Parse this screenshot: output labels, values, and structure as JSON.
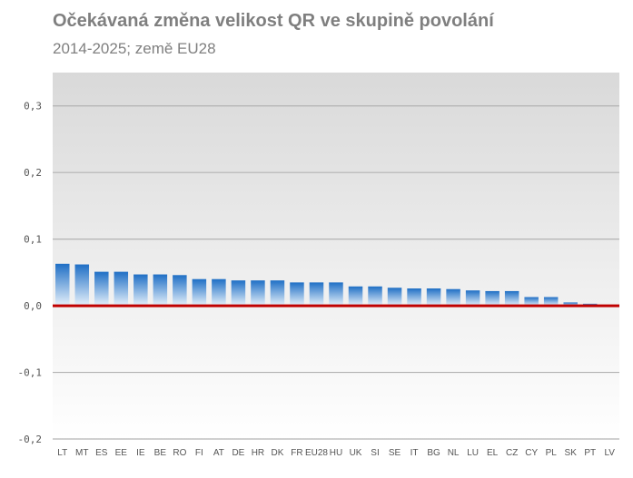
{
  "title": "Očekávaná změna velikost QR ve skupině povolání",
  "subtitle": "2014-2025; země EU28",
  "chart_data": {
    "type": "bar",
    "title": "Očekávaná změna velikost QR ve skupině povolání",
    "subtitle": "2014-2025; země EU28",
    "xlabel": "",
    "ylabel": "",
    "ylim": [
      -0.2,
      0.35
    ],
    "yticks": [
      0.3,
      0.2,
      0.1,
      0.0,
      -0.1,
      -0.2
    ],
    "ytick_labels": [
      "0,3",
      "0,2",
      "0,1",
      "0,0",
      "-0,1",
      "-0,2"
    ],
    "grid": true,
    "categories": [
      "LT",
      "MT",
      "ES",
      "EE",
      "IE",
      "BE",
      "RO",
      "FI",
      "AT",
      "DE",
      "HR",
      "DK",
      "FR",
      "EU28",
      "HU",
      "UK",
      "SI",
      "SE",
      "IT",
      "BG",
      "NL",
      "LU",
      "EL",
      "CZ",
      "CY",
      "PL",
      "SK",
      "PT",
      "LV"
    ],
    "values": [
      0.063,
      0.062,
      0.051,
      0.051,
      0.047,
      0.047,
      0.046,
      0.04,
      0.04,
      0.038,
      0.038,
      0.038,
      0.035,
      0.035,
      0.035,
      0.029,
      0.029,
      0.027,
      0.026,
      0.026,
      0.025,
      0.023,
      0.022,
      0.022,
      0.013,
      0.013,
      0.005,
      0.003,
      0.0
    ],
    "colors": {
      "bar_top": "#1f6fc5",
      "bar_bottom": "#e6f1fb",
      "zero_line": "#c00000",
      "plot_bg_top": "#d9d9d9",
      "plot_bg_bottom": "#ffffff",
      "grid": "#b3b3b3"
    }
  }
}
